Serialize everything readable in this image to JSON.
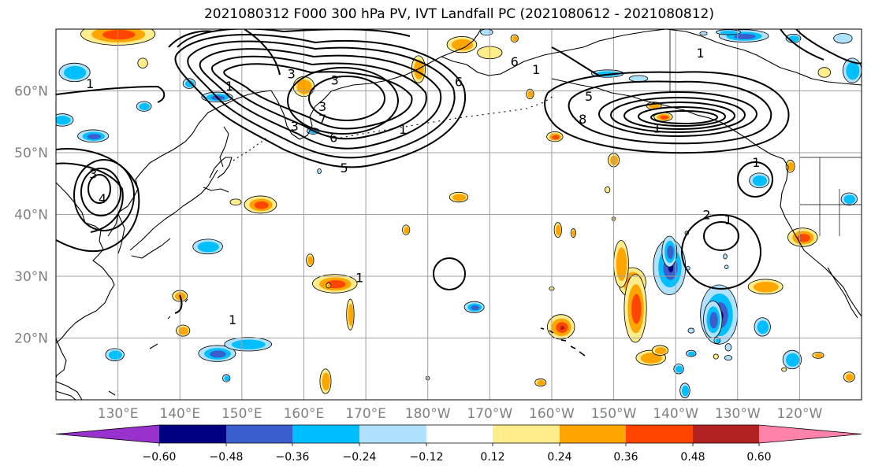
{
  "title": "2021080312 F000 300 hPa PV, IVT Landfall PC (2021080612 - 2021080812)",
  "map": {
    "projection": "PlateCarree",
    "lon_range": [
      120,
      250
    ],
    "lat_range": [
      10,
      70
    ],
    "lon_ticks": [
      130,
      140,
      150,
      160,
      170,
      180,
      190,
      200,
      210,
      220,
      230,
      240
    ],
    "lon_labels": [
      "130°E",
      "140°E",
      "150°E",
      "160°E",
      "170°E",
      "180°W",
      "170°W",
      "160°W",
      "150°W",
      "140°W",
      "130°W",
      "120°W"
    ],
    "lat_ticks": [
      20,
      30,
      40,
      50,
      60
    ],
    "lat_labels": [
      "20°N",
      "30°N",
      "40°N",
      "50°N",
      "60°N"
    ],
    "gridlines": true,
    "tick_label_color": "#808080",
    "coastline_color": "#000000"
  },
  "contours": {
    "color": "#000000",
    "labels": [
      {
        "text": "1",
        "lon": 197.5,
        "lat": 63.5
      },
      {
        "text": "1",
        "lon": 148,
        "lat": 60.8
      },
      {
        "text": "1",
        "lon": 125.5,
        "lat": 61.2
      },
      {
        "text": "1",
        "lon": 176,
        "lat": 53.8
      },
      {
        "text": "1",
        "lon": 224,
        "lat": 66.2
      },
      {
        "text": "1",
        "lon": 233,
        "lat": 48.5
      },
      {
        "text": "1",
        "lon": 228.5,
        "lat": 39.2
      },
      {
        "text": "1",
        "lon": 169,
        "lat": 29.8
      },
      {
        "text": "1",
        "lon": 148.5,
        "lat": 23.0
      },
      {
        "text": "1",
        "lon": 217,
        "lat": 54.0
      },
      {
        "text": "2",
        "lon": 225,
        "lat": 40.0
      },
      {
        "text": "3",
        "lon": 158.5,
        "lat": 54.3
      },
      {
        "text": "3",
        "lon": 163,
        "lat": 57.5
      },
      {
        "text": "3",
        "lon": 158,
        "lat": 62.8
      },
      {
        "text": "3",
        "lon": 165,
        "lat": 61.8
      },
      {
        "text": "3",
        "lon": 126,
        "lat": 46.6
      },
      {
        "text": "5",
        "lon": 166.5,
        "lat": 47.6
      },
      {
        "text": "6",
        "lon": 164.8,
        "lat": 52.5
      },
      {
        "text": "6",
        "lon": 185,
        "lat": 61.5
      },
      {
        "text": "6",
        "lon": 194,
        "lat": 64.8
      },
      {
        "text": "7",
        "lon": 163,
        "lat": 55.5
      },
      {
        "text": "8",
        "lon": 205,
        "lat": 55.5
      },
      {
        "text": "4",
        "lon": 127.5,
        "lat": 42.6
      },
      {
        "text": "5",
        "lon": 206,
        "lat": 59.2
      }
    ]
  },
  "colorbar": {
    "levels": [
      -0.72,
      -0.6,
      -0.48,
      -0.36,
      -0.24,
      -0.12,
      0.12,
      0.24,
      0.36,
      0.48,
      0.6,
      0.72
    ],
    "colors": [
      "#9932cc",
      "#000080",
      "#3a5fcd",
      "#00bfff",
      "#b0e2ff",
      "#ffffff",
      "#ffec8b",
      "#ffa500",
      "#ff4500",
      "#b22222",
      "#ff82ab"
    ],
    "tick_values": [
      -0.6,
      -0.48,
      -0.36,
      -0.24,
      -0.12,
      0.12,
      0.24,
      0.36,
      0.48,
      0.6
    ],
    "tick_labels": [
      "−0.60",
      "−0.48",
      "−0.36",
      "−0.24",
      "−0.12",
      "0.12",
      "0.24",
      "0.36",
      "0.48",
      "0.60"
    ],
    "extend": "both"
  },
  "blobs": [
    {
      "lon": 130,
      "lat": 69.2,
      "r": [
        6,
        1.8
      ],
      "cat": "ppp"
    },
    {
      "lon": 167.5,
      "lat": 23.8,
      "r": [
        0.6,
        2.5
      ],
      "cat": "pp"
    },
    {
      "lon": 134,
      "lat": 64.5,
      "r": [
        0.8,
        0.8
      ],
      "cat": "p"
    },
    {
      "lon": 185.5,
      "lat": 67.5,
      "r": [
        2.4,
        1.3
      ],
      "cat": "pp"
    },
    {
      "lon": 190,
      "lat": 66.2,
      "r": [
        2,
        1
      ],
      "cat": "p"
    },
    {
      "lon": 194,
      "lat": 68.5,
      "r": [
        0.6,
        0.6
      ],
      "cat": "pp"
    },
    {
      "lon": 178.5,
      "lat": 63.5,
      "r": [
        1.1,
        2.2
      ],
      "cat": "pp"
    },
    {
      "lon": 160,
      "lat": 60.7,
      "r": [
        1.7,
        1.6
      ],
      "cat": "pp"
    },
    {
      "lon": 165,
      "lat": 28.8,
      "r": [
        3.6,
        1.5
      ],
      "cat": "ppp"
    },
    {
      "lon": 163.5,
      "lat": 13.0,
      "r": [
        0.9,
        2.0
      ],
      "cat": "pp"
    },
    {
      "lon": 153,
      "lat": 41.6,
      "r": [
        2.6,
        1.4
      ],
      "cat": "ppp"
    },
    {
      "lon": 140,
      "lat": 26.8,
      "r": [
        1.2,
        0.9
      ],
      "cat": "pp"
    },
    {
      "lon": 140.5,
      "lat": 21.2,
      "r": [
        1.1,
        0.9
      ],
      "cat": "pp"
    },
    {
      "lon": 149,
      "lat": 42.0,
      "r": [
        0.9,
        0.5
      ],
      "cat": "p"
    },
    {
      "lon": 164,
      "lat": 28.5,
      "r": [
        0.4,
        0.4
      ],
      "cat": "pp"
    },
    {
      "lon": 161,
      "lat": 32.6,
      "r": [
        0.6,
        1.0
      ],
      "cat": "pp"
    },
    {
      "lon": 176.5,
      "lat": 37.5,
      "r": [
        0.6,
        0.8
      ],
      "cat": "pp"
    },
    {
      "lon": 185,
      "lat": 42.8,
      "r": [
        1.5,
        0.8
      ],
      "cat": "pp"
    },
    {
      "lon": 200,
      "lat": 28.0,
      "r": [
        0.4,
        0.3
      ],
      "cat": "p"
    },
    {
      "lon": 201,
      "lat": 37.5,
      "r": [
        0.6,
        1.2
      ],
      "cat": "pp"
    },
    {
      "lon": 203.5,
      "lat": 37.0,
      "r": [
        0.4,
        0.7
      ],
      "cat": "pp"
    },
    {
      "lon": 200.5,
      "lat": 52.6,
      "r": [
        1.3,
        0.8
      ],
      "cat": "ppp"
    },
    {
      "lon": 198.2,
      "lat": 12.8,
      "r": [
        0.9,
        0.6
      ],
      "cat": "pp"
    },
    {
      "lon": 196.5,
      "lat": 59.5,
      "r": [
        0.6,
        0.8
      ],
      "cat": "pp"
    },
    {
      "lon": 210,
      "lat": 48.8,
      "r": [
        0.9,
        1.1
      ],
      "cat": "pp"
    },
    {
      "lon": 209,
      "lat": 44.0,
      "r": [
        0.4,
        0.5
      ],
      "cat": "p"
    },
    {
      "lon": 210,
      "lat": 39.3,
      "r": [
        0.3,
        0.3
      ],
      "cat": "pp"
    },
    {
      "lon": 201.5,
      "lat": 21.8,
      "r": [
        2.2,
        2.0
      ],
      "cat": "pppp"
    },
    {
      "lon": 213,
      "lat": 29.0,
      "r": [
        2.2,
        2.4
      ],
      "cat": "pppp"
    },
    {
      "lon": 213.5,
      "lat": 24.8,
      "r": [
        1.8,
        5.5
      ],
      "cat": "ppp"
    },
    {
      "lon": 211.2,
      "lat": 32.0,
      "r": [
        1.2,
        3.8
      ],
      "cat": "pp"
    },
    {
      "lon": 216,
      "lat": 16.8,
      "r": [
        2.4,
        1.2
      ],
      "cat": "pp"
    },
    {
      "lon": 217.5,
      "lat": 18.0,
      "r": [
        1.3,
        0.8
      ],
      "cat": "pp"
    },
    {
      "lon": 218,
      "lat": 55.8,
      "r": [
        1.5,
        0.7
      ],
      "cat": "ppp"
    },
    {
      "lon": 216.5,
      "lat": 57.6,
      "r": [
        1.2,
        0.6
      ],
      "cat": "pp"
    },
    {
      "lon": 227.5,
      "lat": 24.8,
      "r": [
        0.5,
        0.4
      ],
      "cat": "pp"
    },
    {
      "lon": 226.5,
      "lat": 17.0,
      "r": [
        0.4,
        0.4
      ],
      "cat": "p"
    },
    {
      "lon": 234.5,
      "lat": 28.3,
      "r": [
        2.8,
        1.2
      ],
      "cat": "pp"
    },
    {
      "lon": 240.5,
      "lat": 36.3,
      "r": [
        2.4,
        1.5
      ],
      "cat": "ppp"
    },
    {
      "lon": 238.5,
      "lat": 47.8,
      "r": [
        0.7,
        1.0
      ],
      "cat": "pp"
    },
    {
      "lon": 237.5,
      "lat": 14.9,
      "r": [
        0.4,
        0.3
      ],
      "cat": "p"
    },
    {
      "lon": 243,
      "lat": 17.2,
      "r": [
        0.9,
        0.5
      ],
      "cat": "pp"
    },
    {
      "lon": 248,
      "lat": 13.7,
      "r": [
        0.9,
        0.8
      ],
      "cat": "pp"
    },
    {
      "lon": 244,
      "lat": 63.0,
      "r": [
        1,
        0.8
      ],
      "cat": "p"
    },
    {
      "lon": 219,
      "lat": 31.5,
      "r": [
        2.6,
        4.5
      ],
      "cat": "nnnn"
    },
    {
      "lon": 219,
      "lat": 34.0,
      "r": [
        1.2,
        2.5
      ],
      "cat": "nnn"
    },
    {
      "lon": 227,
      "lat": 23.8,
      "r": [
        3,
        4.8
      ],
      "cat": "nnnn"
    },
    {
      "lon": 226,
      "lat": 23.0,
      "r": [
        1.5,
        3
      ],
      "cat": "nnn"
    },
    {
      "lon": 234,
      "lat": 21.8,
      "r": [
        1.3,
        1.5
      ],
      "cat": "nn"
    },
    {
      "lon": 238.8,
      "lat": 16.5,
      "r": [
        1.5,
        1.5
      ],
      "cat": "nn"
    },
    {
      "lon": 228.5,
      "lat": 18.5,
      "r": [
        0.5,
        0.6
      ],
      "cat": "n"
    },
    {
      "lon": 228.5,
      "lat": 16.8,
      "r": [
        0.6,
        0.4
      ],
      "cat": "n"
    },
    {
      "lon": 222.5,
      "lat": 17.5,
      "r": [
        0.8,
        0.5
      ],
      "cat": "nn"
    },
    {
      "lon": 221.5,
      "lat": 11.5,
      "r": [
        0.8,
        1.2
      ],
      "cat": "nn"
    },
    {
      "lon": 222.5,
      "lat": 21.2,
      "r": [
        0.5,
        0.4
      ],
      "cat": "n"
    },
    {
      "lon": 220.5,
      "lat": 15.0,
      "r": [
        0.8,
        0.8
      ],
      "cat": "nn"
    },
    {
      "lon": 221.8,
      "lat": 37.0,
      "r": [
        0.3,
        0.3
      ],
      "cat": "n"
    },
    {
      "lon": 222,
      "lat": 31.3,
      "r": [
        0.3,
        0.3
      ],
      "cat": "n"
    },
    {
      "lon": 228.2,
      "lat": 31.5,
      "r": [
        0.3,
        0.3
      ],
      "cat": "n"
    },
    {
      "lon": 228,
      "lat": 33.2,
      "r": [
        0.3,
        0.4
      ],
      "cat": "n"
    },
    {
      "lon": 226.7,
      "lat": 19.6,
      "r": [
        0.5,
        0.5
      ],
      "cat": "nn"
    },
    {
      "lon": 146,
      "lat": 17.5,
      "r": [
        3,
        1.3
      ],
      "cat": "nnn"
    },
    {
      "lon": 151,
      "lat": 19.0,
      "r": [
        3.8,
        1.1
      ],
      "cat": "nn"
    },
    {
      "lon": 147.5,
      "lat": 13.5,
      "r": [
        0.6,
        0.6
      ],
      "cat": "nn"
    },
    {
      "lon": 144.5,
      "lat": 34.8,
      "r": [
        2.4,
        1.2
      ],
      "cat": "nn"
    },
    {
      "lon": 129.5,
      "lat": 17.3,
      "r": [
        1.5,
        1.0
      ],
      "cat": "nn"
    },
    {
      "lon": 123,
      "lat": 63.0,
      "r": [
        2.5,
        1.5
      ],
      "cat": "nn"
    },
    {
      "lon": 126,
      "lat": 52.7,
      "r": [
        2.5,
        1.0
      ],
      "cat": "nnn"
    },
    {
      "lon": 121,
      "lat": 55.3,
      "r": [
        1.8,
        1.0
      ],
      "cat": "nn"
    },
    {
      "lon": 134.2,
      "lat": 57.5,
      "r": [
        1.2,
        0.8
      ],
      "cat": "nn"
    },
    {
      "lon": 141.5,
      "lat": 61.2,
      "r": [
        1.0,
        0.8
      ],
      "cat": "nn"
    },
    {
      "lon": 146,
      "lat": 59.0,
      "r": [
        2.5,
        0.8
      ],
      "cat": "nnn"
    },
    {
      "lon": 161.5,
      "lat": 53.5,
      "r": [
        1.0,
        0.5
      ],
      "cat": "nn"
    },
    {
      "lon": 162.5,
      "lat": 47.0,
      "r": [
        0.3,
        0.4
      ],
      "cat": "n"
    },
    {
      "lon": 187.5,
      "lat": 25.0,
      "r": [
        1.6,
        0.9
      ],
      "cat": "nnn"
    },
    {
      "lon": 189.5,
      "lat": 69.5,
      "r": [
        1,
        0.5
      ],
      "cat": "n"
    },
    {
      "lon": 224.5,
      "lat": 69.3,
      "r": [
        0.6,
        0.3
      ],
      "cat": "n"
    },
    {
      "lon": 231,
      "lat": 68.9,
      "r": [
        4,
        1.0
      ],
      "cat": "nnn"
    },
    {
      "lon": 228.5,
      "lat": 69.5,
      "r": [
        2,
        0.4
      ],
      "cat": "nn"
    },
    {
      "lon": 239,
      "lat": 68.5,
      "r": [
        1.2,
        0.7
      ],
      "cat": "nn"
    },
    {
      "lon": 247,
      "lat": 68.5,
      "r": [
        1.5,
        0.8
      ],
      "cat": "n"
    },
    {
      "lon": 248.5,
      "lat": 63.3,
      "r": [
        1.5,
        2.0
      ],
      "cat": "nn"
    },
    {
      "lon": 233.5,
      "lat": 45.5,
      "r": [
        1.6,
        1.2
      ],
      "cat": "nn"
    },
    {
      "lon": 248,
      "lat": 42.5,
      "r": [
        1.3,
        1.0
      ],
      "cat": "nn"
    },
    {
      "lon": 209,
      "lat": 62.8,
      "r": [
        2.6,
        0.6
      ],
      "cat": "nn"
    },
    {
      "lon": 214,
      "lat": 62.0,
      "r": [
        1.5,
        0.5
      ],
      "cat": "n"
    },
    {
      "lon": 180,
      "lat": 13.5,
      "r": [
        0.3,
        0.3
      ],
      "cat": "n"
    }
  ]
}
